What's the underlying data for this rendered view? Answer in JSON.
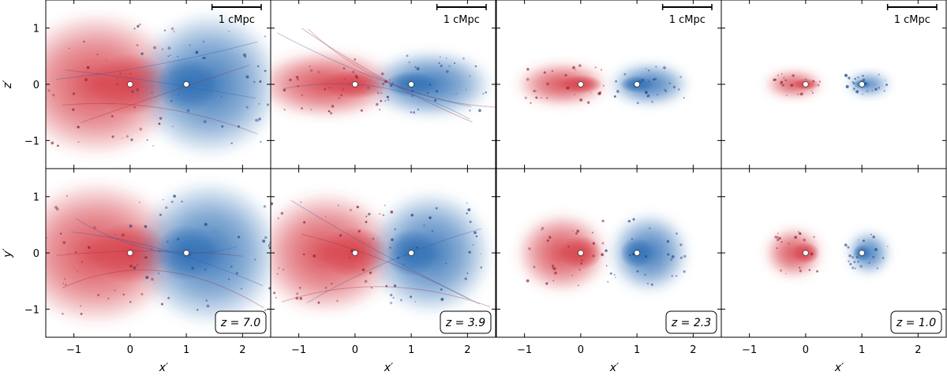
{
  "chart_data": {
    "type": "heatmap",
    "description_series": [
      "red halo particles",
      "blue halo particles"
    ],
    "colors": {
      "red": "#d6404a",
      "blue": "#2f6fb5"
    },
    "xlim": [
      -1.5,
      2.5
    ],
    "ylim": [
      -1.5,
      1.5
    ],
    "x_ticks": [
      "−1",
      "0",
      "1",
      "2"
    ],
    "x_tick_values": [
      -1,
      0,
      1,
      2
    ],
    "y_ticks": [
      "1",
      "0",
      "−1"
    ],
    "y_tick_values": [
      1,
      0,
      -1
    ],
    "xlabel": "x′",
    "ylabel_top": "z′",
    "ylabel_bottom": "y′",
    "scalebar_label": "1 cMpc",
    "halo_centers": [
      {
        "x": 0,
        "y": 0
      },
      {
        "x": 1,
        "y": 0
      }
    ],
    "panels": [
      {
        "redshift_label": "z = 7.0",
        "red_extent": 1.0,
        "blue_extent": 1.0
      },
      {
        "redshift_label": "z = 3.9",
        "red_extent": 0.85,
        "blue_extent": 0.85
      },
      {
        "redshift_label": "z = 2.3",
        "red_extent": 0.55,
        "blue_extent": 0.55
      },
      {
        "redshift_label": "z = 1.0",
        "red_extent": 0.35,
        "blue_extent": 0.3
      }
    ]
  }
}
